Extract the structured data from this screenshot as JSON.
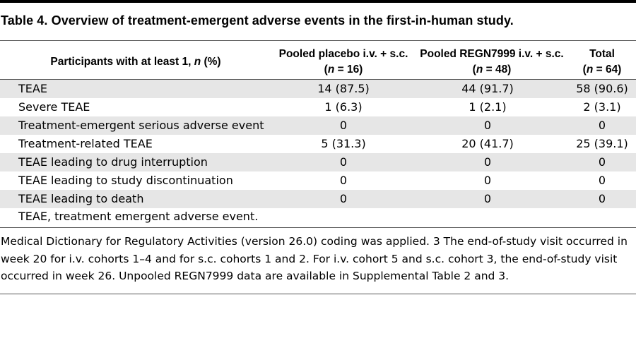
{
  "title": "Table 4. Overview of treatment-emergent adverse events in the first-in-human study.",
  "header": {
    "label_prefix": "Participants with at least 1, ",
    "label_n": "n",
    "label_suffix": " (%)",
    "columns": [
      {
        "line1": "Pooled placebo i.v. + s.c.",
        "n_italic": "n",
        "n_rest": " = 16)"
      },
      {
        "line1": "Pooled REGN7999 i.v. + s.c.",
        "n_italic": "n",
        "n_rest": " = 48)"
      },
      {
        "line1": "Total",
        "n_italic": "n",
        "n_rest": " = 64)"
      }
    ]
  },
  "rows": [
    {
      "label": "TEAE",
      "values": [
        "14 (87.5)",
        "44 (91.7)",
        "58 (90.6)"
      ]
    },
    {
      "label": "Severe TEAE",
      "values": [
        "1 (6.3)",
        "1 (2.1)",
        "2 (3.1)"
      ]
    },
    {
      "label": "Treatment-emergent serious adverse event",
      "values": [
        "0",
        "0",
        "0"
      ]
    },
    {
      "label": "Treatment-related TEAE",
      "values": [
        "5 (31.3)",
        "20 (41.7)",
        "25 (39.1)"
      ]
    },
    {
      "label": "TEAE leading to drug interruption",
      "values": [
        "0",
        "0",
        "0"
      ]
    },
    {
      "label": "TEAE leading to study discontinuation",
      "values": [
        "0",
        "0",
        "0"
      ]
    },
    {
      "label": "TEAE leading to death",
      "values": [
        "0",
        "0",
        "0"
      ]
    }
  ],
  "abbreviation": "TEAE, treatment emergent adverse event.",
  "footnote": "Medical Dictionary for Regulatory Activities (version 26.0) coding was applied. 3 The end-of-study visit occurred in week 20 for i.v. cohorts 1–4 and for s.c. cohorts 1 and 2. For i.v. cohort 5 and s.c. cohort 3, the end-of-study visit occurred in week 26. Unpooled REGN7999 data are available in Supplemental Table 2 and 3."
}
